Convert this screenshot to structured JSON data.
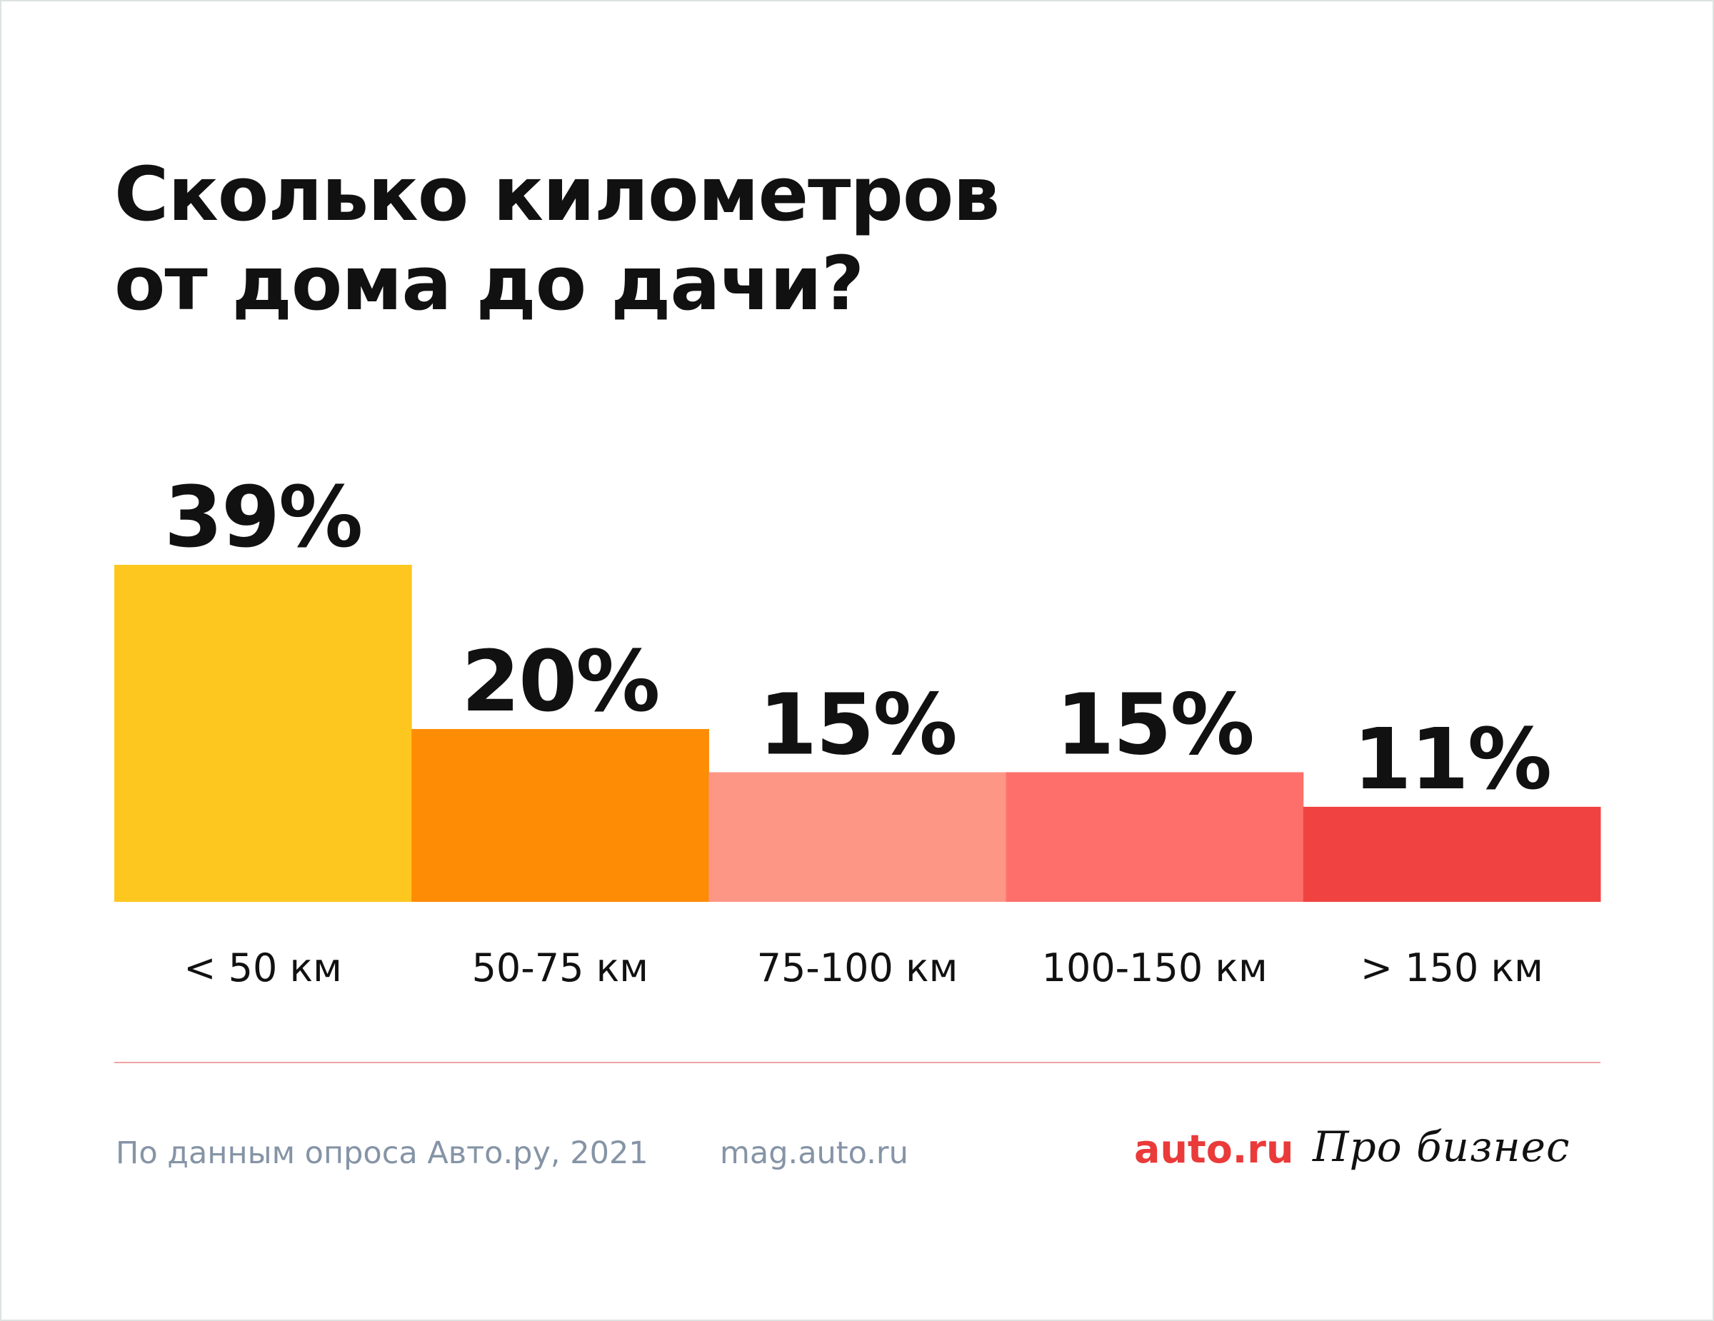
{
  "title": {
    "line1": "Сколько километров",
    "line2": "от дома до дачи?"
  },
  "chart_data": {
    "type": "bar",
    "categories": [
      "< 50 км",
      "50-75 км",
      "75-100 км",
      "100-150 км",
      "> 150 км"
    ],
    "values": [
      39,
      20,
      15,
      15,
      11
    ],
    "value_labels": [
      "39%",
      "20%",
      "15%",
      "15%",
      "11%"
    ],
    "colors": [
      "#fec720",
      "#fe8c04",
      "#fe9686",
      "#fe6f6b",
      "#f04341"
    ],
    "ylim": [
      0,
      39
    ],
    "grid": false,
    "legend": "none"
  },
  "footer": {
    "source": "По данным опроса Авто.ру, 2021",
    "site": "mag.auto.ru",
    "brand_auto": "auto.ru",
    "brand_pro": "Про бизнес"
  },
  "colors": {
    "divider": "#f0a3a4",
    "footer_text": "#8594a6",
    "brand_red": "#ea3a3a"
  }
}
